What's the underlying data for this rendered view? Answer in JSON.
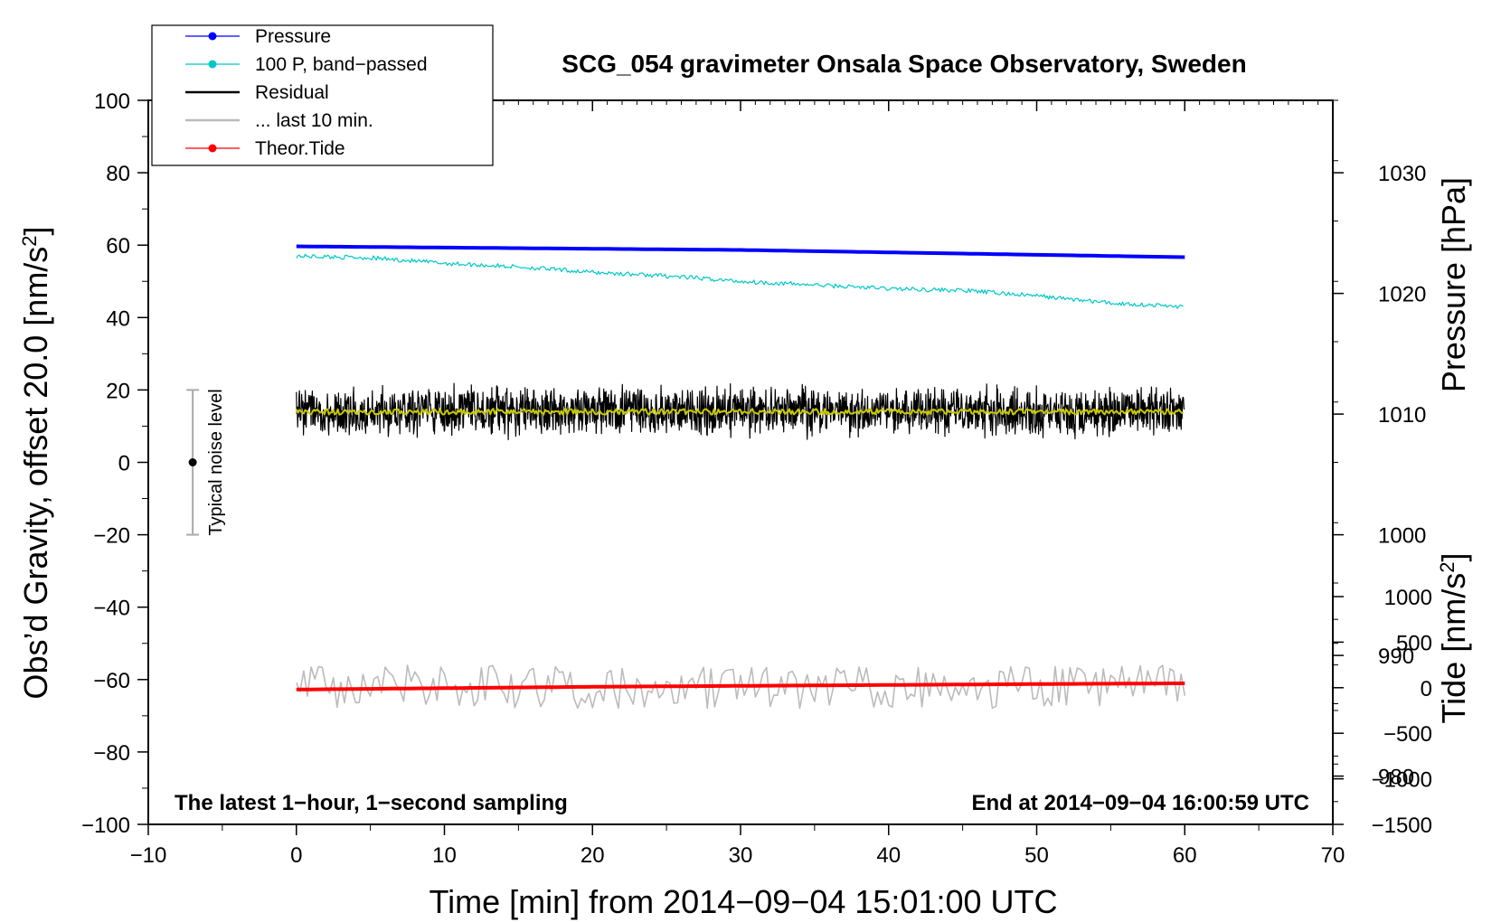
{
  "chart_data": {
    "type": "line",
    "title": "SCG_054 gravimeter Onsala Space Observatory, Sweden",
    "xlabel": "Time [min] from 2014−09−04 15:01:00 UTC",
    "ylabel": "Obs’d Gravity, offset 20.0 [nm/s",
    "ylabel_sup": "2",
    "ylabel_end": "]",
    "ylabel_right_pressure": "Pressure [hPa]",
    "ylabel_right_tide": "Tide [nm/s",
    "ylabel_right_tide_sup": "2",
    "ylabel_right_tide_end": "]",
    "xlim": [
      -10,
      70
    ],
    "ylim": [
      -100,
      100
    ],
    "xticks": [
      -10,
      0,
      10,
      20,
      30,
      40,
      50,
      60,
      70
    ],
    "xtick_labels": [
      "−10",
      "0",
      "10",
      "20",
      "30",
      "40",
      "50",
      "60",
      "70"
    ],
    "yticks": [
      -100,
      -80,
      -60,
      -40,
      -20,
      0,
      20,
      40,
      60,
      80,
      100
    ],
    "ytick_labels": [
      "−100",
      "−80",
      "−60",
      "−40",
      "−20",
      "0",
      "20",
      "40",
      "60",
      "80",
      "100"
    ],
    "pressure_axis": {
      "range_hpa": [
        976,
        1036
      ],
      "ticks": [
        980,
        990,
        1000,
        1010,
        1020,
        1030
      ],
      "tick_labels": [
        "980",
        "990",
        "1000",
        "1010",
        "1020",
        "1030"
      ]
    },
    "tide_axis": {
      "range": [
        -1500,
        1000
      ],
      "ticks": [
        -1500,
        -1000,
        -500,
        0,
        500,
        1000
      ],
      "tick_labels": [
        "−1500",
        "−1000",
        "−500",
        "0",
        "500",
        "1000"
      ]
    },
    "legend": {
      "position": "top-left",
      "entries": [
        {
          "label": "Pressure",
          "color": "#0000ff",
          "marker": true
        },
        {
          "label": "100 P, band−passed",
          "color": "#00c8c8",
          "marker": true
        },
        {
          "label": "Residual",
          "color": "#000000",
          "marker": false
        },
        {
          "label": "... last 10 min.",
          "color": "#bbbbbb",
          "marker": false
        },
        {
          "label": "Theor.Tide",
          "color": "#ff0000",
          "marker": true
        }
      ]
    },
    "series": [
      {
        "name": "Pressure",
        "color": "#0000ff",
        "unit": "hPa",
        "x": [
          0,
          10,
          20,
          30,
          40,
          50,
          60
        ],
        "values": [
          1023.9,
          1023.8,
          1023.7,
          1023.6,
          1023.4,
          1023.2,
          1023.0
        ]
      },
      {
        "name": "100 P, band-passed",
        "color": "#00c8c8",
        "unit": "nm/s2",
        "x": [
          0,
          5,
          10,
          15,
          20,
          25,
          30,
          35,
          40,
          45,
          50,
          55,
          60
        ],
        "values": [
          57,
          56.5,
          55,
          54,
          52.5,
          51.5,
          50,
          49,
          48,
          47.5,
          46,
          44,
          43
        ]
      },
      {
        "name": "Residual",
        "color": "#000000",
        "unit": "nm/s2",
        "x": [
          0,
          60
        ],
        "values": [
          14,
          14
        ],
        "noise_amplitude": 8
      },
      {
        "name": "Residual smoothed",
        "color": "#c8c800",
        "unit": "nm/s2",
        "x": [
          0,
          60
        ],
        "values": [
          14,
          14
        ]
      },
      {
        "name": "... last 10 min.",
        "color": "#bbbbbb",
        "unit": "nm/s2",
        "x": [
          0,
          60
        ],
        "values": [
          -62,
          -62
        ],
        "noise_amplitude": 6
      },
      {
        "name": "Theor.Tide",
        "color": "#ff0000",
        "unit": "nm/s2 (tide axis)",
        "x": [
          0,
          10,
          20,
          30,
          40,
          50,
          60
        ],
        "values": [
          -20,
          -5,
          10,
          20,
          30,
          40,
          48
        ]
      }
    ],
    "noise_bar": {
      "label": "Typical noise level",
      "x": -7,
      "y": 0,
      "ymin": -20,
      "ymax": 20
    },
    "corner_left": "The latest 1−hour, 1−second sampling",
    "corner_right": "End at 2014−09−04 16:00:59 UTC",
    "colors": {
      "noise_bar": "#aaaaaa",
      "residual_smooth": "#c8c800"
    }
  }
}
